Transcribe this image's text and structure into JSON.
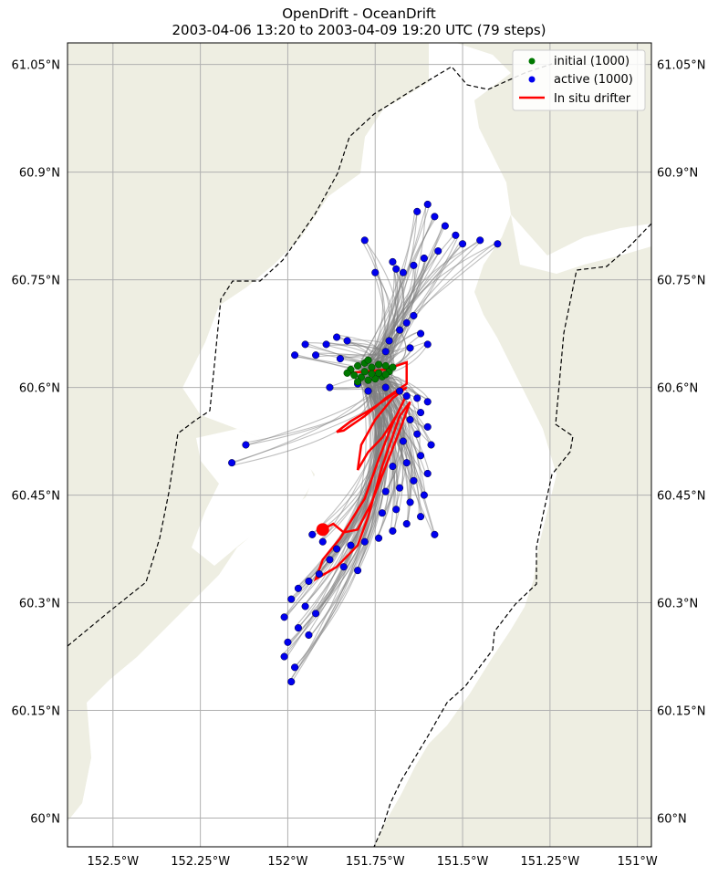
{
  "title": {
    "line1": "OpenDrift - OceanDrift",
    "line2": "2003-04-06 13:20 to 2003-04-09 19:20 UTC (79 steps)"
  },
  "map": {
    "lon_range": [
      -152.63,
      -150.96
    ],
    "lat_range": [
      59.96,
      61.08
    ],
    "grid": true,
    "land_color": "#eeeee2",
    "water_color": "#ffffff",
    "trajectory_color": "#808080",
    "x_ticks": [
      {
        "lon": -152.5,
        "label": "152.5°W"
      },
      {
        "lon": -152.25,
        "label": "152.25°W"
      },
      {
        "lon": -152.0,
        "label": "152°W"
      },
      {
        "lon": -151.75,
        "label": "151.75°W"
      },
      {
        "lon": -151.5,
        "label": "151.5°W"
      },
      {
        "lon": -151.25,
        "label": "151.25°W"
      },
      {
        "lon": -151.0,
        "label": "151°W"
      }
    ],
    "y_ticks": [
      {
        "lat": 61.05,
        "label": "61.05°N"
      },
      {
        "lat": 60.9,
        "label": "60.9°N"
      },
      {
        "lat": 60.75,
        "label": "60.75°N"
      },
      {
        "lat": 60.6,
        "label": "60.6°N"
      },
      {
        "lat": 60.45,
        "label": "60.45°N"
      },
      {
        "lat": 60.3,
        "label": "60.3°N"
      },
      {
        "lat": 60.15,
        "label": "60.15°N"
      },
      {
        "lat": 60.0,
        "label": "60°N"
      }
    ]
  },
  "legend": {
    "position": "top-right",
    "items": [
      {
        "label": "initial (1000)",
        "color": "#007800",
        "kind": "marker"
      },
      {
        "label": "active (1000)",
        "color": "#0000ee",
        "kind": "marker"
      },
      {
        "label": "In situ drifter",
        "color": "#ff0000",
        "kind": "line"
      }
    ]
  },
  "chart_data": {
    "type": "scatter",
    "title": "OpenDrift - OceanDrift",
    "subtitle": "2003-04-06 13:20 to 2003-04-09 19:20 UTC (79 steps)",
    "xlim": [
      -152.63,
      -150.96
    ],
    "ylim": [
      59.96,
      61.08
    ],
    "grid": true,
    "legend_position": "top-right",
    "series": [
      {
        "name": "initial (1000)",
        "color": "#007800",
        "center": [
          -151.76,
          60.622
        ],
        "points": [
          [
            -151.82,
            60.625
          ],
          [
            -151.8,
            60.63
          ],
          [
            -151.78,
            60.634
          ],
          [
            -151.76,
            60.628
          ],
          [
            -151.74,
            60.632
          ],
          [
            -151.72,
            60.63
          ],
          [
            -151.71,
            60.622
          ],
          [
            -151.73,
            60.615
          ],
          [
            -151.75,
            60.612
          ],
          [
            -151.77,
            60.61
          ],
          [
            -151.79,
            60.614
          ],
          [
            -151.81,
            60.617
          ],
          [
            -151.83,
            60.62
          ],
          [
            -151.78,
            60.622
          ],
          [
            -151.76,
            60.619
          ],
          [
            -151.74,
            60.62
          ],
          [
            -151.72,
            60.618
          ],
          [
            -151.8,
            60.608
          ],
          [
            -151.7,
            60.628
          ],
          [
            -151.77,
            60.638
          ]
        ]
      },
      {
        "name": "active (1000)",
        "color": "#0000ee",
        "points": [
          [
            -151.63,
            60.845
          ],
          [
            -151.6,
            60.855
          ],
          [
            -151.58,
            60.838
          ],
          [
            -151.55,
            60.825
          ],
          [
            -151.52,
            60.812
          ],
          [
            -151.5,
            60.8
          ],
          [
            -151.45,
            60.805
          ],
          [
            -151.4,
            60.8
          ],
          [
            -151.57,
            60.79
          ],
          [
            -151.61,
            60.78
          ],
          [
            -151.64,
            60.77
          ],
          [
            -151.67,
            60.76
          ],
          [
            -151.78,
            60.805
          ],
          [
            -151.7,
            60.775
          ],
          [
            -151.69,
            60.765
          ],
          [
            -151.75,
            60.76
          ],
          [
            -151.64,
            60.7
          ],
          [
            -151.66,
            60.69
          ],
          [
            -151.68,
            60.68
          ],
          [
            -151.62,
            60.675
          ],
          [
            -151.6,
            60.66
          ],
          [
            -151.65,
            60.655
          ],
          [
            -151.71,
            60.665
          ],
          [
            -151.72,
            60.65
          ],
          [
            -151.86,
            60.67
          ],
          [
            -151.83,
            60.665
          ],
          [
            -151.89,
            60.66
          ],
          [
            -151.95,
            60.66
          ],
          [
            -151.98,
            60.645
          ],
          [
            -151.92,
            60.645
          ],
          [
            -151.85,
            60.64
          ],
          [
            -151.88,
            60.6
          ],
          [
            -151.8,
            60.605
          ],
          [
            -151.77,
            60.595
          ],
          [
            -151.72,
            60.6
          ],
          [
            -151.68,
            60.595
          ],
          [
            -151.66,
            60.588
          ],
          [
            -151.63,
            60.585
          ],
          [
            -151.6,
            60.58
          ],
          [
            -151.62,
            60.565
          ],
          [
            -151.65,
            60.555
          ],
          [
            -151.6,
            60.545
          ],
          [
            -151.63,
            60.535
          ],
          [
            -151.67,
            60.525
          ],
          [
            -151.59,
            60.52
          ],
          [
            -151.62,
            60.505
          ],
          [
            -151.66,
            60.495
          ],
          [
            -151.7,
            60.49
          ],
          [
            -151.6,
            60.48
          ],
          [
            -151.64,
            60.47
          ],
          [
            -151.68,
            60.46
          ],
          [
            -151.72,
            60.455
          ],
          [
            -151.61,
            60.45
          ],
          [
            -151.65,
            60.44
          ],
          [
            -151.69,
            60.43
          ],
          [
            -151.73,
            60.425
          ],
          [
            -151.62,
            60.42
          ],
          [
            -151.66,
            60.41
          ],
          [
            -151.7,
            60.4
          ],
          [
            -151.58,
            60.395
          ],
          [
            -151.74,
            60.39
          ],
          [
            -151.78,
            60.385
          ],
          [
            -151.82,
            60.38
          ],
          [
            -151.86,
            60.375
          ],
          [
            -151.9,
            60.385
          ],
          [
            -151.93,
            60.395
          ],
          [
            -151.88,
            60.36
          ],
          [
            -151.84,
            60.35
          ],
          [
            -151.8,
            60.345
          ],
          [
            -151.91,
            60.34
          ],
          [
            -151.94,
            60.33
          ],
          [
            -151.97,
            60.32
          ],
          [
            -151.99,
            60.305
          ],
          [
            -151.95,
            60.295
          ],
          [
            -151.92,
            60.285
          ],
          [
            -152.01,
            60.28
          ],
          [
            -151.97,
            60.265
          ],
          [
            -151.94,
            60.255
          ],
          [
            -152.0,
            60.245
          ],
          [
            -152.01,
            60.225
          ],
          [
            -151.98,
            60.21
          ],
          [
            -151.99,
            60.19
          ],
          [
            -152.12,
            60.52
          ],
          [
            -152.16,
            60.495
          ]
        ]
      },
      {
        "name": "In situ drifter",
        "color": "#ff0000",
        "points": [
          [
            -151.9,
            60.402
          ],
          [
            -151.87,
            60.41
          ],
          [
            -151.84,
            60.398
          ],
          [
            -151.8,
            60.402
          ],
          [
            -151.76,
            60.44
          ],
          [
            -151.72,
            60.49
          ],
          [
            -151.68,
            60.54
          ],
          [
            -151.65,
            60.58
          ],
          [
            -151.68,
            60.56
          ],
          [
            -151.73,
            60.49
          ],
          [
            -151.77,
            60.42
          ],
          [
            -151.8,
            60.38
          ],
          [
            -151.86,
            60.35
          ],
          [
            -151.92,
            60.333
          ],
          [
            -151.9,
            60.36
          ],
          [
            -151.85,
            60.39
          ],
          [
            -151.78,
            60.445
          ],
          [
            -151.74,
            60.5
          ],
          [
            -151.7,
            60.55
          ],
          [
            -151.66,
            60.59
          ],
          [
            -151.69,
            60.56
          ],
          [
            -151.73,
            60.53
          ],
          [
            -151.77,
            60.51
          ],
          [
            -151.8,
            60.485
          ],
          [
            -151.79,
            60.52
          ],
          [
            -151.75,
            60.555
          ],
          [
            -151.7,
            60.585
          ],
          [
            -151.66,
            60.6
          ],
          [
            -151.7,
            60.59
          ],
          [
            -151.76,
            60.57
          ],
          [
            -151.82,
            60.553
          ],
          [
            -151.86,
            60.538
          ],
          [
            -151.84,
            60.54
          ],
          [
            -151.78,
            60.56
          ],
          [
            -151.72,
            60.585
          ],
          [
            -151.66,
            60.605
          ],
          [
            -151.66,
            60.635
          ],
          [
            -151.72,
            60.625
          ],
          [
            -151.78,
            60.622
          ],
          [
            -151.83,
            60.62
          ]
        ]
      }
    ]
  }
}
